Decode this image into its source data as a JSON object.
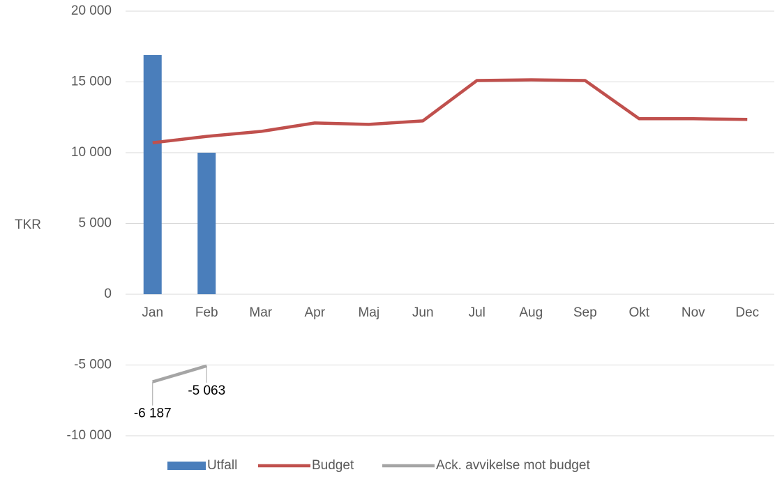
{
  "chart_data": {
    "type": "bar",
    "y_label": "TKR",
    "categories": [
      "Jan",
      "Feb",
      "Mar",
      "Apr",
      "Maj",
      "Jun",
      "Jul",
      "Aug",
      "Sep",
      "Okt",
      "Nov",
      "Dec"
    ],
    "series": [
      {
        "name": "Utfall",
        "type": "bar",
        "color": "#4a7ebb",
        "values": [
          16900,
          10000,
          null,
          null,
          null,
          null,
          null,
          null,
          null,
          null,
          null,
          null
        ]
      },
      {
        "name": "Budget",
        "type": "line",
        "color": "#c0504d",
        "values": [
          10700,
          11150,
          11500,
          12100,
          12000,
          12250,
          15100,
          15150,
          15100,
          12400,
          12400,
          12350
        ]
      },
      {
        "name": "Ack. avvikelse mot budget",
        "type": "line",
        "color": "#a5a5a5",
        "values": [
          -6187,
          -5063,
          null,
          null,
          null,
          null,
          null,
          null,
          null,
          null,
          null,
          null
        ],
        "value_labels": [
          "-6 187",
          "-5 063",
          null,
          null,
          null,
          null,
          null,
          null,
          null,
          null,
          null,
          null
        ]
      }
    ],
    "ylim": [
      -10000,
      20000
    ],
    "yticks": [
      {
        "value": -10000,
        "label": "-10 000"
      },
      {
        "value": -5000,
        "label": "-5 000"
      },
      0,
      {
        "value": 5000,
        "label": "5 000"
      },
      {
        "value": 10000,
        "label": "10 000"
      },
      {
        "value": 15000,
        "label": "15 000"
      },
      {
        "value": 20000,
        "label": "20 000"
      }
    ],
    "grid": true,
    "legend": "bottom"
  }
}
